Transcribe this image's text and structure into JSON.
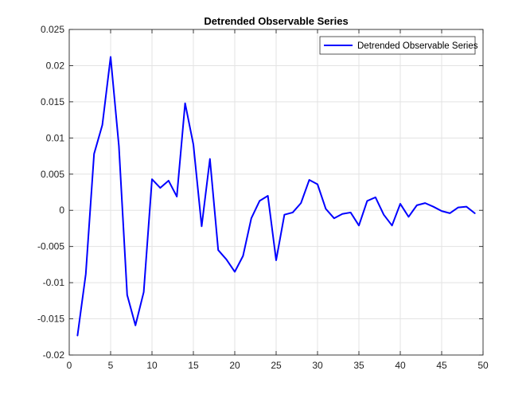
{
  "chart_data": {
    "type": "line",
    "title": "Detrended Observable Series",
    "xlabel": "",
    "ylabel": "",
    "xlim": [
      0,
      50
    ],
    "ylim": [
      -0.02,
      0.025
    ],
    "x_ticks": [
      0,
      5,
      10,
      15,
      20,
      25,
      30,
      35,
      40,
      45,
      50
    ],
    "x_tick_labels": [
      "0",
      "5",
      "10",
      "15",
      "20",
      "25",
      "30",
      "35",
      "40",
      "45",
      "50"
    ],
    "y_ticks": [
      -0.02,
      -0.015,
      -0.01,
      -0.005,
      0,
      0.005,
      0.01,
      0.015,
      0.02,
      0.025
    ],
    "y_tick_labels": [
      "-0.02",
      "-0.015",
      "-0.01",
      "-0.005",
      "0",
      "0.005",
      "0.01",
      "0.015",
      "0.02",
      "0.025"
    ],
    "grid": true,
    "legend_position": "top-right",
    "series": [
      {
        "name": "Detrended Observable Series",
        "color": "#0000ff",
        "x": [
          1,
          2,
          3,
          4,
          5,
          6,
          7,
          8,
          9,
          10,
          11,
          12,
          13,
          14,
          15,
          16,
          17,
          18,
          19,
          20,
          21,
          22,
          23,
          24,
          25,
          26,
          27,
          28,
          29,
          30,
          31,
          32,
          33,
          34,
          35,
          36,
          37,
          38,
          39,
          40,
          41,
          42,
          43,
          44,
          45,
          46,
          47,
          48,
          49
        ],
        "values": [
          -0.0173,
          -0.0088,
          0.0078,
          0.0118,
          0.0212,
          0.0089,
          -0.0117,
          -0.0159,
          -0.0113,
          0.0043,
          0.0031,
          0.0041,
          0.0019,
          0.0148,
          0.0091,
          -0.0022,
          0.0071,
          -0.0055,
          -0.0068,
          -0.0085,
          -0.0063,
          -0.0011,
          0.0013,
          0.002,
          -0.0069,
          -0.0006,
          -0.0003,
          0.001,
          0.0042,
          0.0036,
          0.0002,
          -0.0011,
          -0.0005,
          -0.0003,
          -0.0021,
          0.0013,
          0.0018,
          -0.0006,
          -0.0021,
          0.0009,
          -0.0009,
          0.0007,
          0.001,
          0.0005,
          -0.0001,
          -0.0004,
          0.0004,
          0.0005,
          -0.0004
        ]
      }
    ]
  }
}
